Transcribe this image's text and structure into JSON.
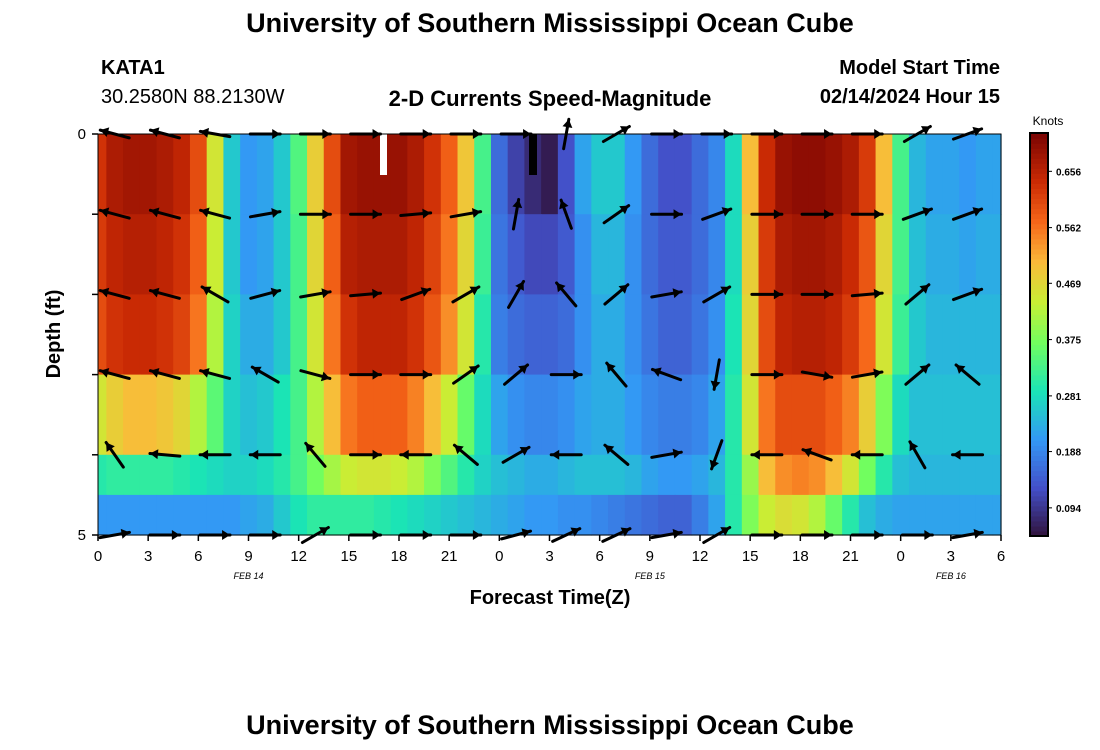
{
  "header": {
    "title": "University of Southern Mississippi Ocean Cube",
    "station": "KATA1",
    "coords": "30.2580N  88.2130W",
    "plot_title": "2-D Currents Speed-Magnitude",
    "model_label": "Model Start Time",
    "model_time": "02/14/2024 Hour 15"
  },
  "footer": {
    "title": "University of Southern Mississippi Ocean Cube"
  },
  "chart_data": {
    "type": "heatmap",
    "title": "2-D Currents Speed-Magnitude",
    "xlabel": "Forecast Time(Z)",
    "ylabel": "Depth (ft)",
    "x_ticks": [
      "0",
      "3",
      "6",
      "9",
      "12",
      "15",
      "18",
      "21",
      "0",
      "3",
      "6",
      "9",
      "12",
      "15",
      "18",
      "21",
      "0",
      "3",
      "6"
    ],
    "date_labels": [
      "FEB 14",
      "FEB 15",
      "FEB 16"
    ],
    "y_ticks": [
      "0",
      "5"
    ],
    "ylim": [
      0,
      5
    ],
    "colorbar": {
      "unit": "Knots",
      "ticks": [
        "0.656",
        "0.562",
        "0.469",
        "0.375",
        "0.281",
        "0.188",
        "0.094"
      ],
      "tick_values": [
        0.656,
        0.562,
        0.469,
        0.375,
        0.281,
        0.188,
        0.094
      ],
      "range": [
        0.047,
        0.72
      ]
    },
    "hours": [
      0,
      1,
      2,
      3,
      4,
      5,
      6,
      7,
      8,
      9,
      10,
      11,
      12,
      13,
      14,
      15,
      16,
      17,
      18,
      19,
      20,
      21,
      22,
      23,
      24,
      25,
      26,
      27,
      28,
      29,
      30,
      31,
      32,
      33,
      34,
      35,
      36,
      37,
      38,
      39,
      40,
      41,
      42,
      43,
      44,
      45,
      46,
      47,
      48,
      49,
      50,
      51,
      52,
      53,
      54
    ],
    "speed_rows": [
      {
        "depth": 0.5,
        "values": [
          0.63,
          0.67,
          0.68,
          0.68,
          0.67,
          0.65,
          0.6,
          0.45,
          0.26,
          0.21,
          0.22,
          0.26,
          0.34,
          0.48,
          0.6,
          0.68,
          0.69,
          0.69,
          0.69,
          0.67,
          0.63,
          0.58,
          0.49,
          0.33,
          0.16,
          0.11,
          0.08,
          0.06,
          0.13,
          0.22,
          0.26,
          0.26,
          0.21,
          0.16,
          0.13,
          0.13,
          0.16,
          0.19,
          0.28,
          0.5,
          0.64,
          0.69,
          0.7,
          0.7,
          0.69,
          0.67,
          0.62,
          0.5,
          0.33,
          0.24,
          0.22,
          0.22,
          0.21,
          0.22,
          0.22
        ]
      },
      {
        "depth": 1.5,
        "values": [
          0.62,
          0.65,
          0.66,
          0.66,
          0.65,
          0.63,
          0.58,
          0.44,
          0.26,
          0.21,
          0.22,
          0.26,
          0.33,
          0.47,
          0.58,
          0.66,
          0.67,
          0.67,
          0.67,
          0.65,
          0.61,
          0.56,
          0.47,
          0.32,
          0.17,
          0.14,
          0.12,
          0.12,
          0.14,
          0.2,
          0.24,
          0.24,
          0.2,
          0.16,
          0.14,
          0.14,
          0.16,
          0.19,
          0.28,
          0.48,
          0.62,
          0.67,
          0.68,
          0.68,
          0.67,
          0.64,
          0.59,
          0.47,
          0.33,
          0.25,
          0.23,
          0.23,
          0.22,
          0.23,
          0.23
        ]
      },
      {
        "depth": 2.5,
        "values": [
          0.6,
          0.63,
          0.64,
          0.64,
          0.63,
          0.61,
          0.56,
          0.42,
          0.27,
          0.23,
          0.23,
          0.26,
          0.33,
          0.45,
          0.56,
          0.63,
          0.65,
          0.65,
          0.65,
          0.63,
          0.59,
          0.54,
          0.45,
          0.3,
          0.18,
          0.16,
          0.15,
          0.15,
          0.16,
          0.2,
          0.23,
          0.23,
          0.2,
          0.17,
          0.15,
          0.15,
          0.17,
          0.2,
          0.29,
          0.47,
          0.6,
          0.65,
          0.66,
          0.66,
          0.65,
          0.62,
          0.57,
          0.45,
          0.32,
          0.26,
          0.24,
          0.24,
          0.24,
          0.24,
          0.24
        ]
      },
      {
        "depth": 3.5,
        "values": [
          0.45,
          0.48,
          0.5,
          0.5,
          0.49,
          0.47,
          0.42,
          0.35,
          0.27,
          0.25,
          0.26,
          0.29,
          0.33,
          0.42,
          0.5,
          0.56,
          0.58,
          0.58,
          0.58,
          0.55,
          0.5,
          0.44,
          0.36,
          0.28,
          0.22,
          0.2,
          0.19,
          0.19,
          0.2,
          0.22,
          0.23,
          0.23,
          0.21,
          0.19,
          0.18,
          0.18,
          0.19,
          0.22,
          0.3,
          0.45,
          0.56,
          0.6,
          0.6,
          0.6,
          0.58,
          0.55,
          0.48,
          0.38,
          0.28,
          0.25,
          0.25,
          0.25,
          0.25,
          0.25,
          0.25
        ]
      },
      {
        "depth": 4.5,
        "values": [
          0.3,
          0.31,
          0.31,
          0.31,
          0.31,
          0.3,
          0.29,
          0.28,
          0.27,
          0.27,
          0.28,
          0.3,
          0.33,
          0.37,
          0.41,
          0.44,
          0.45,
          0.45,
          0.44,
          0.42,
          0.38,
          0.34,
          0.3,
          0.27,
          0.25,
          0.24,
          0.23,
          0.23,
          0.24,
          0.25,
          0.25,
          0.25,
          0.24,
          0.22,
          0.21,
          0.21,
          0.22,
          0.24,
          0.3,
          0.4,
          0.5,
          0.54,
          0.55,
          0.54,
          0.5,
          0.45,
          0.37,
          0.3,
          0.25,
          0.24,
          0.24,
          0.24,
          0.24,
          0.24,
          0.24
        ]
      },
      {
        "depth": 5.0,
        "values": [
          0.21,
          0.21,
          0.21,
          0.21,
          0.21,
          0.21,
          0.21,
          0.21,
          0.21,
          0.22,
          0.23,
          0.26,
          0.29,
          0.31,
          0.31,
          0.31,
          0.31,
          0.3,
          0.29,
          0.28,
          0.27,
          0.26,
          0.25,
          0.24,
          0.23,
          0.22,
          0.21,
          0.21,
          0.2,
          0.2,
          0.19,
          0.18,
          0.17,
          0.16,
          0.15,
          0.15,
          0.18,
          0.22,
          0.3,
          0.38,
          0.44,
          0.46,
          0.45,
          0.42,
          0.36,
          0.3,
          0.25,
          0.23,
          0.22,
          0.22,
          0.22,
          0.22,
          0.22,
          0.22,
          0.22
        ]
      }
    ],
    "arrow_hours": [
      1,
      4,
      7,
      10,
      13,
      16,
      19,
      22,
      25,
      28,
      31,
      34,
      37,
      40,
      43,
      46,
      49,
      52
    ],
    "arrow_rows": [
      {
        "depth": 0.0,
        "angles": [
          165,
          165,
          170,
          0,
          0,
          0,
          0,
          0,
          0,
          80,
          30,
          0,
          0,
          0,
          0,
          0,
          30,
          20
        ]
      },
      {
        "depth": 1.0,
        "angles": [
          165,
          165,
          165,
          10,
          0,
          0,
          5,
          10,
          80,
          110,
          35,
          0,
          20,
          0,
          0,
          0,
          20,
          20
        ]
      },
      {
        "depth": 2.0,
        "angles": [
          165,
          165,
          150,
          15,
          10,
          5,
          20,
          30,
          60,
          130,
          40,
          10,
          30,
          0,
          0,
          5,
          40,
          20
        ]
      },
      {
        "depth": 3.0,
        "angles": [
          165,
          165,
          165,
          150,
          -15,
          0,
          0,
          35,
          40,
          0,
          130,
          160,
          -100,
          0,
          -10,
          10,
          40,
          140
        ]
      },
      {
        "depth": 4.0,
        "angles": [
          125,
          175,
          -180,
          -180,
          130,
          0,
          -180,
          140,
          30,
          -180,
          140,
          10,
          -110,
          -180,
          160,
          -180,
          120,
          -180
        ]
      },
      {
        "depth": 5.0,
        "angles": [
          10,
          0,
          0,
          0,
          30,
          0,
          0,
          0,
          15,
          25,
          25,
          10,
          30,
          0,
          0,
          0,
          0,
          10
        ]
      }
    ],
    "grid": false
  }
}
